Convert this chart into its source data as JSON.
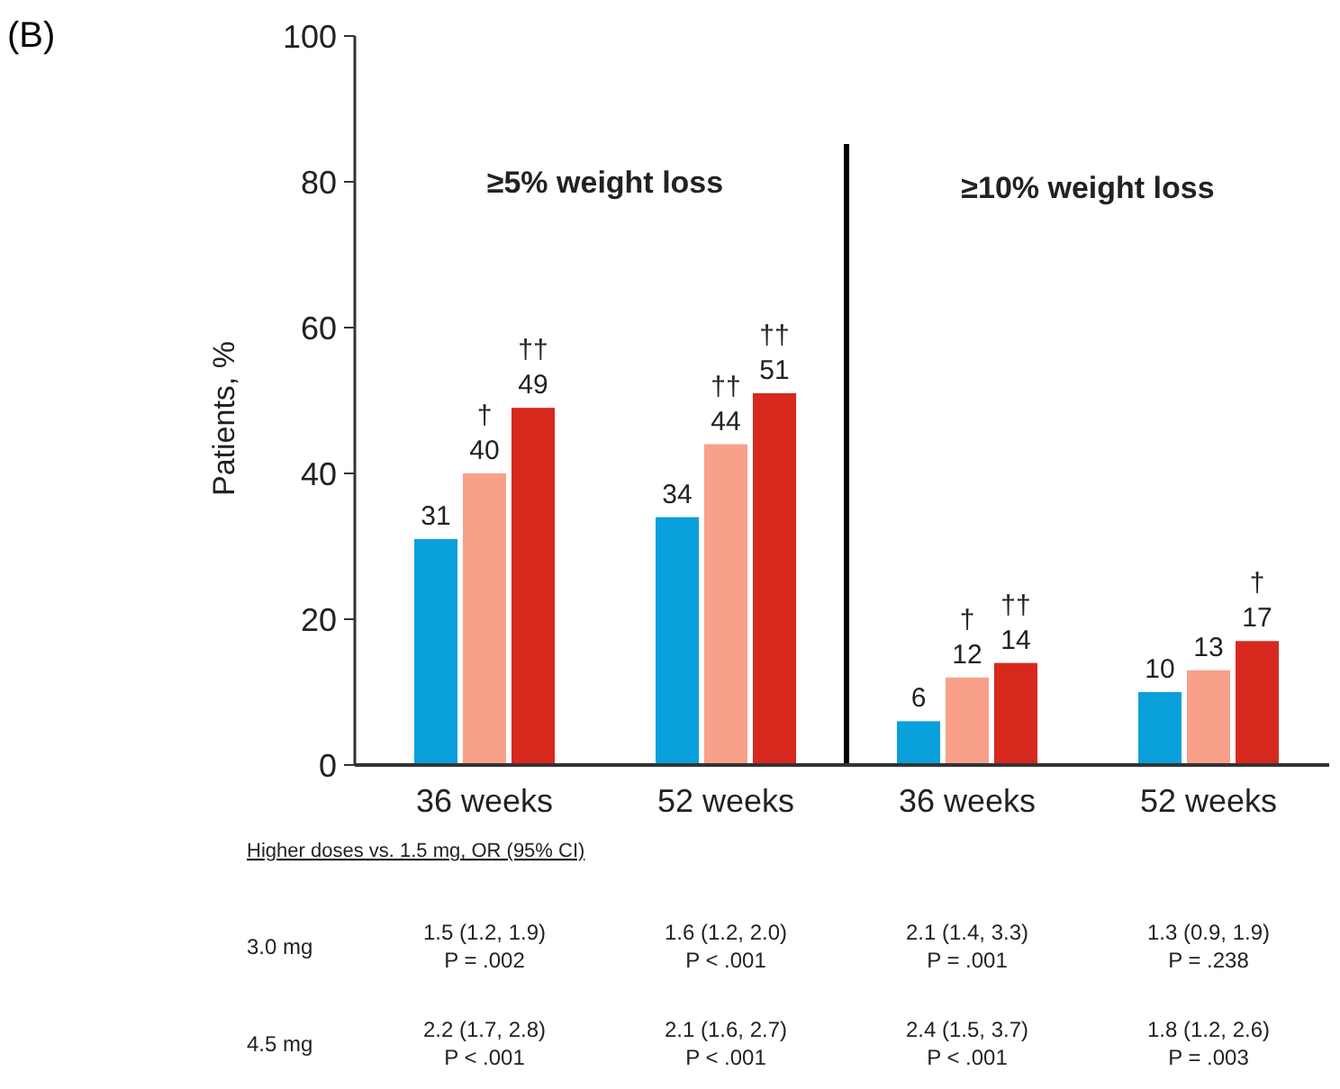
{
  "chart_data": {
    "type": "bar",
    "title": "(B)",
    "ylabel": "Patients, %",
    "categories": [
      "36 weeks",
      "52 weeks",
      "36 weeks",
      "52 weeks"
    ],
    "series": [
      {
        "color": "#0aa0dc",
        "values": [
          31,
          34,
          6,
          10
        ],
        "value_labels": [
          "31",
          "34",
          "6",
          "10"
        ]
      },
      {
        "color": "#f9a08a",
        "values": [
          40,
          44,
          12,
          13
        ],
        "value_labels": [
          "†\n40",
          "††\n44",
          "†\n12",
          "13"
        ]
      },
      {
        "color": "#d7281e",
        "values": [
          49,
          51,
          14,
          17
        ],
        "value_labels": [
          "††\n49",
          "††\n51",
          "††\n14",
          "†\n17"
        ]
      }
    ],
    "ylim": [
      0,
      100
    ],
    "yticks": [
      0,
      20,
      40,
      60,
      80,
      100
    ],
    "annotations": [
      "≥5% weight loss",
      "≥10% weight loss",
      "Higher doses vs. 1.5 mg, OR (95% CI)",
      "3.0 mg",
      "1.5 (1.2, 1.9)\nP = .002",
      "1.6 (1.2, 2.0)\nP < .001",
      "2.1 (1.4, 3.3)\nP = .001",
      "1.3 (0.9, 1.9)\nP = .238",
      "4.5 mg",
      "2.2 (1.7, 2.8)\nP < .001",
      "2.1 (1.6, 2.7)\nP < .001",
      "2.4 (1.5, 3.7)\nP < .001",
      "1.8 (1.2, 2.6)\nP = .003"
    ]
  }
}
